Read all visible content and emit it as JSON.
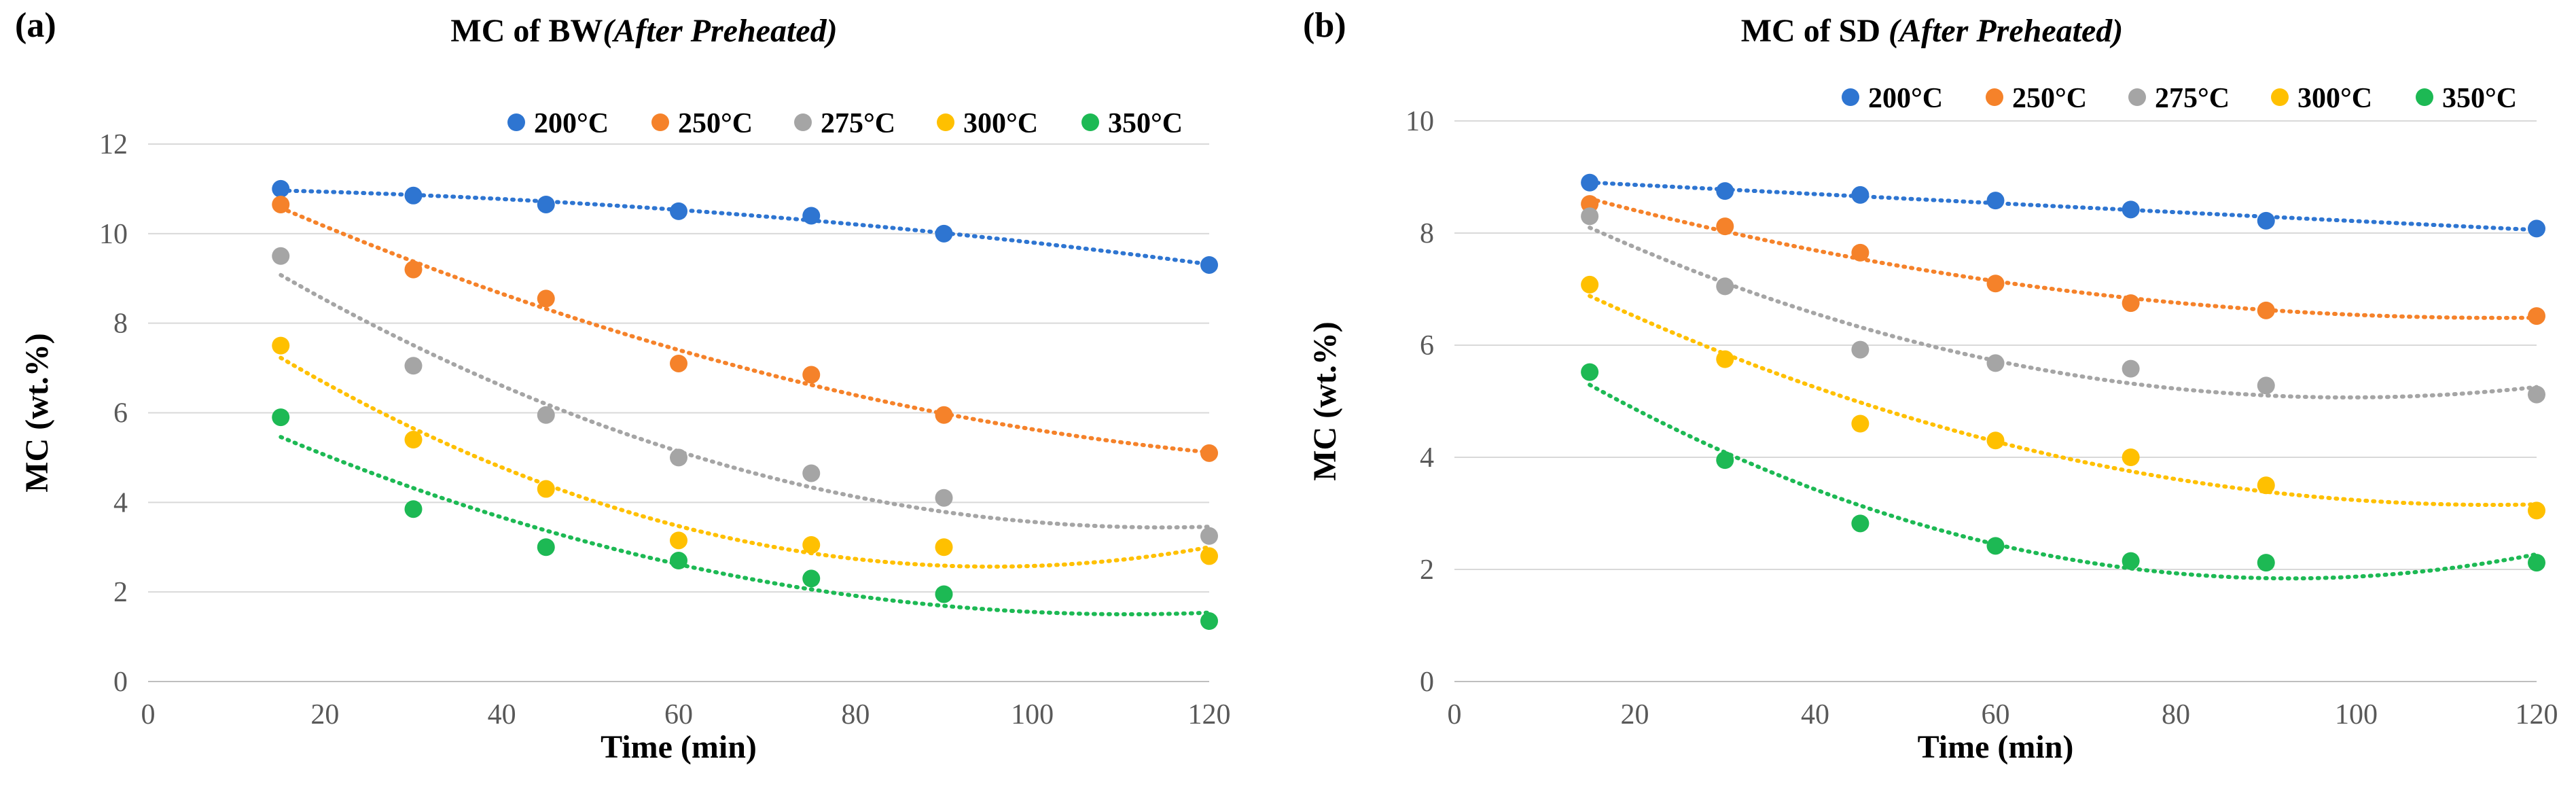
{
  "chart_data": [
    {
      "type": "scatter",
      "panel_label": "(a)",
      "title_main": "MC of BW",
      "title_italic": "(After Preheated)",
      "xlabel": "Time (min)",
      "ylabel": "MC (wt.%)",
      "xlim": [
        0,
        120
      ],
      "ylim": [
        0,
        12
      ],
      "xticks": [
        0,
        20,
        40,
        60,
        80,
        100,
        120
      ],
      "yticks": [
        0,
        2,
        4,
        6,
        8,
        10,
        12
      ],
      "grid": "horizontal",
      "legend_position": "top-right",
      "trendline": "polynomial order 2, dotted",
      "x": [
        15,
        30,
        45,
        60,
        75,
        90,
        120
      ],
      "series": [
        {
          "name": "200°C",
          "color": "#2E75D1",
          "values": [
            11.0,
            10.85,
            10.65,
            10.5,
            10.4,
            10.0,
            9.3
          ]
        },
        {
          "name": "250°C",
          "color": "#F5822A",
          "values": [
            10.65,
            9.2,
            8.55,
            7.1,
            6.85,
            5.95,
            5.1
          ]
        },
        {
          "name": "275°C",
          "color": "#A5A5A5",
          "values": [
            9.5,
            7.05,
            5.95,
            5.0,
            4.65,
            4.1,
            3.25
          ]
        },
        {
          "name": "300°C",
          "color": "#FFC000",
          "values": [
            7.5,
            5.4,
            4.3,
            3.15,
            3.05,
            3.0,
            2.8
          ]
        },
        {
          "name": "350°C",
          "color": "#1DB954",
          "values": [
            5.9,
            3.85,
            3.0,
            2.7,
            2.3,
            1.95,
            1.35
          ]
        }
      ]
    },
    {
      "type": "scatter",
      "panel_label": "(b)",
      "title_main": "MC of SD ",
      "title_italic": "(After Preheated)",
      "xlabel": "Time (min)",
      "ylabel": "MC (wt.%)",
      "xlim": [
        0,
        120
      ],
      "ylim": [
        0,
        10
      ],
      "xticks": [
        0,
        20,
        40,
        60,
        80,
        100,
        120
      ],
      "yticks": [
        0,
        2,
        4,
        6,
        8,
        10
      ],
      "grid": "horizontal",
      "legend_position": "top-right",
      "trendline": "polynomial order 2, dotted",
      "x": [
        15,
        30,
        45,
        60,
        75,
        90,
        120
      ],
      "series": [
        {
          "name": "200°C",
          "color": "#2E75D1",
          "values": [
            8.9,
            8.75,
            8.68,
            8.58,
            8.42,
            8.22,
            8.08
          ]
        },
        {
          "name": "250°C",
          "color": "#F5822A",
          "values": [
            8.52,
            8.12,
            7.65,
            7.1,
            6.75,
            6.62,
            6.52
          ]
        },
        {
          "name": "275°C",
          "color": "#A5A5A5",
          "values": [
            8.3,
            7.05,
            5.92,
            5.68,
            5.58,
            5.28,
            5.12
          ]
        },
        {
          "name": "300°C",
          "color": "#FFC000",
          "values": [
            7.08,
            5.75,
            4.6,
            4.3,
            4.0,
            3.5,
            3.05
          ]
        },
        {
          "name": "350°C",
          "color": "#1DB954",
          "values": [
            5.52,
            3.95,
            2.82,
            2.42,
            2.15,
            2.12,
            2.12
          ]
        }
      ]
    }
  ]
}
